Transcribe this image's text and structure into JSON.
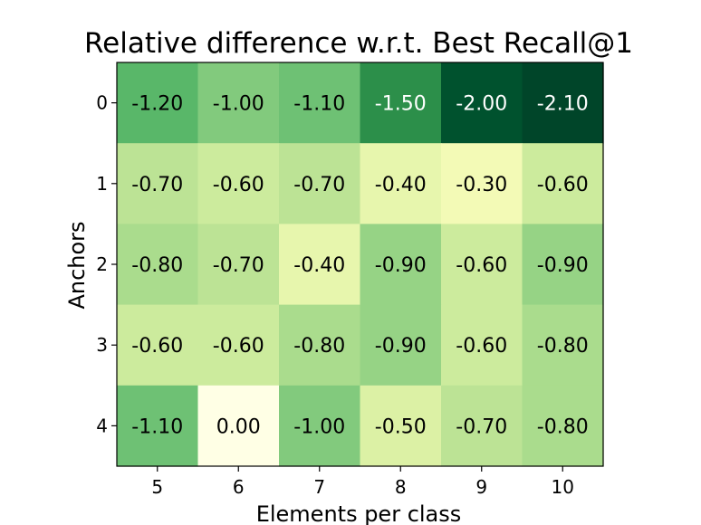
{
  "chart_data": {
    "type": "heatmap",
    "title": "Relative difference w.r.t. Best Recall@1",
    "xlabel": "Elements per class",
    "ylabel": "Anchors",
    "x_categories": [
      "5",
      "6",
      "7",
      "8",
      "9",
      "10"
    ],
    "y_categories": [
      "0",
      "1",
      "2",
      "3",
      "4"
    ],
    "values": [
      [
        -1.2,
        -1.0,
        -1.1,
        -1.5,
        -2.0,
        -2.1
      ],
      [
        -0.7,
        -0.6,
        -0.7,
        -0.4,
        -0.3,
        -0.6
      ],
      [
        -0.8,
        -0.7,
        -0.4,
        -0.9,
        -0.6,
        -0.9
      ],
      [
        -0.6,
        -0.6,
        -0.8,
        -0.9,
        -0.6,
        -0.8
      ],
      [
        -1.1,
        0.0,
        -1.0,
        -0.5,
        -0.7,
        -0.8
      ]
    ],
    "labels": [
      [
        "-1.20",
        "-1.00",
        "-1.10",
        "-1.50",
        "-2.00",
        "-2.10"
      ],
      [
        "-0.70",
        "-0.60",
        "-0.70",
        "-0.40",
        "-0.30",
        "-0.60"
      ],
      [
        "-0.80",
        "-0.70",
        "-0.40",
        "-0.90",
        "-0.60",
        "-0.90"
      ],
      [
        "-0.60",
        "-0.60",
        "-0.80",
        "-0.90",
        "-0.60",
        "-0.80"
      ],
      [
        "-1.10",
        "0.00",
        "-1.00",
        "-0.50",
        "-0.70",
        "-0.80"
      ]
    ],
    "value_range": [
      -2.1,
      0.0
    ],
    "colormap": "YlGn_r",
    "grid": false,
    "legend": "none"
  }
}
